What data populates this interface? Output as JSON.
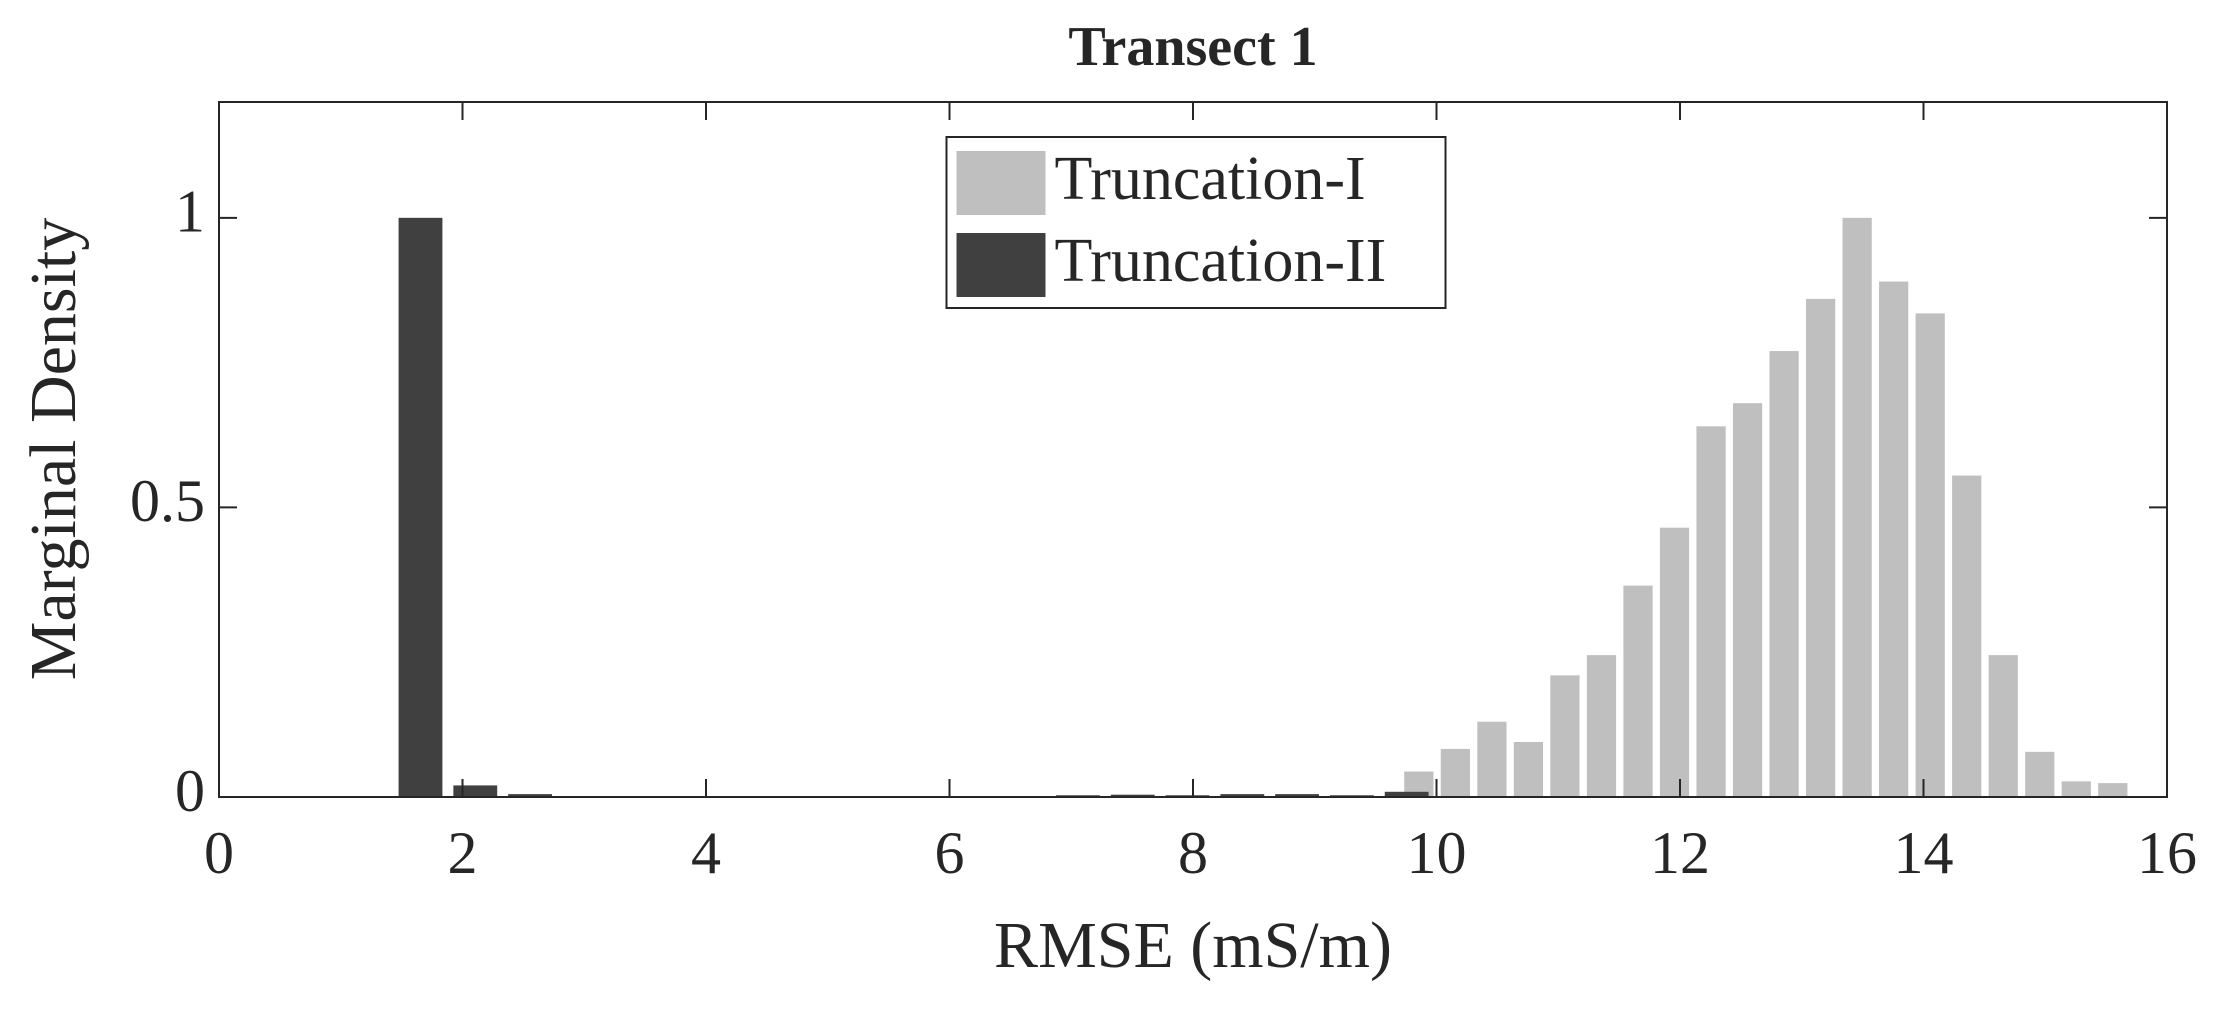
{
  "chart_data": {
    "type": "histogram",
    "title": "Transect 1",
    "xlabel": "RMSE (mS/m)",
    "ylabel": "Marginal Density",
    "xlim": [
      0,
      16
    ],
    "ylim": [
      0,
      1.2
    ],
    "xticks": [
      0,
      2,
      4,
      6,
      8,
      10,
      12,
      14,
      16
    ],
    "yticks": [
      0,
      0.5,
      1
    ],
    "legend": "north",
    "series": [
      {
        "name": "Truncation-I",
        "color": "#bfbfbf",
        "bins": [
          9.705,
          10.005,
          10.305,
          10.605,
          10.905,
          11.205,
          11.505,
          11.805,
          12.105,
          12.405,
          12.705,
          13.005,
          13.305,
          13.605,
          13.905,
          14.205,
          14.505,
          14.805,
          15.105,
          15.405,
          15.705
        ],
        "values": [
          0.044,
          0.083,
          0.13,
          0.095,
          0.21,
          0.245,
          0.365,
          0.465,
          0.64,
          0.68,
          0.77,
          0.86,
          1.0,
          0.89,
          0.835,
          0.555,
          0.245,
          0.078,
          0.027,
          0.024
        ]
      },
      {
        "name": "Truncation-II",
        "color": "#404040",
        "bins": [
          1.43,
          1.88,
          2.33,
          2.78,
          3.23,
          3.68,
          4.13,
          4.58,
          5.03,
          5.48,
          5.93,
          6.38,
          6.83,
          7.28,
          7.73,
          8.18,
          8.63,
          9.08,
          9.53,
          9.98
        ],
        "values": [
          1.0,
          0.02,
          0.005,
          0,
          0,
          0,
          0,
          0,
          0,
          0,
          0,
          0,
          0.003,
          0.004,
          0.003,
          0.005,
          0.005,
          0.003,
          0.009
        ]
      }
    ]
  }
}
